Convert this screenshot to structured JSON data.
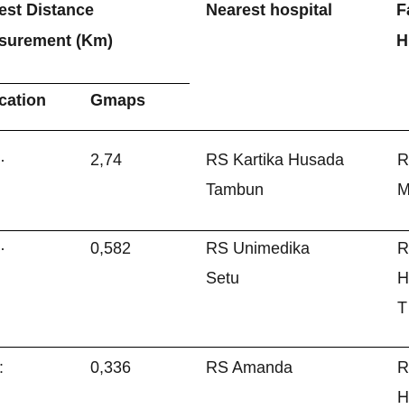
{
  "header": {
    "distance_line1": "est Distance",
    "distance_line2": "surement (Km)",
    "nearest_hospital": "Nearest hospital",
    "col4_line1": "Fa",
    "col4_line2": "H",
    "location": "cation",
    "gmaps": "Gmaps"
  },
  "rows": [
    {
      "col0": "·",
      "gmaps": "2,74",
      "hospital_line1": "RS Kartika Husada",
      "hospital_line2": "Tambun",
      "col4_line1": "R",
      "col4_line2": "M",
      "col4_line3": ""
    },
    {
      "col0": "·",
      "gmaps": "0,582",
      "hospital_line1": "RS Unimedika",
      "hospital_line2": "Setu",
      "col4_line1": "R",
      "col4_line2": "H",
      "col4_line3": "T"
    },
    {
      "col0": ":",
      "gmaps": "0,336",
      "hospital_line1": "RS Amanda",
      "hospital_line2": "",
      "col4_line1": "R",
      "col4_line2": "H",
      "col4_line3": ""
    }
  ]
}
